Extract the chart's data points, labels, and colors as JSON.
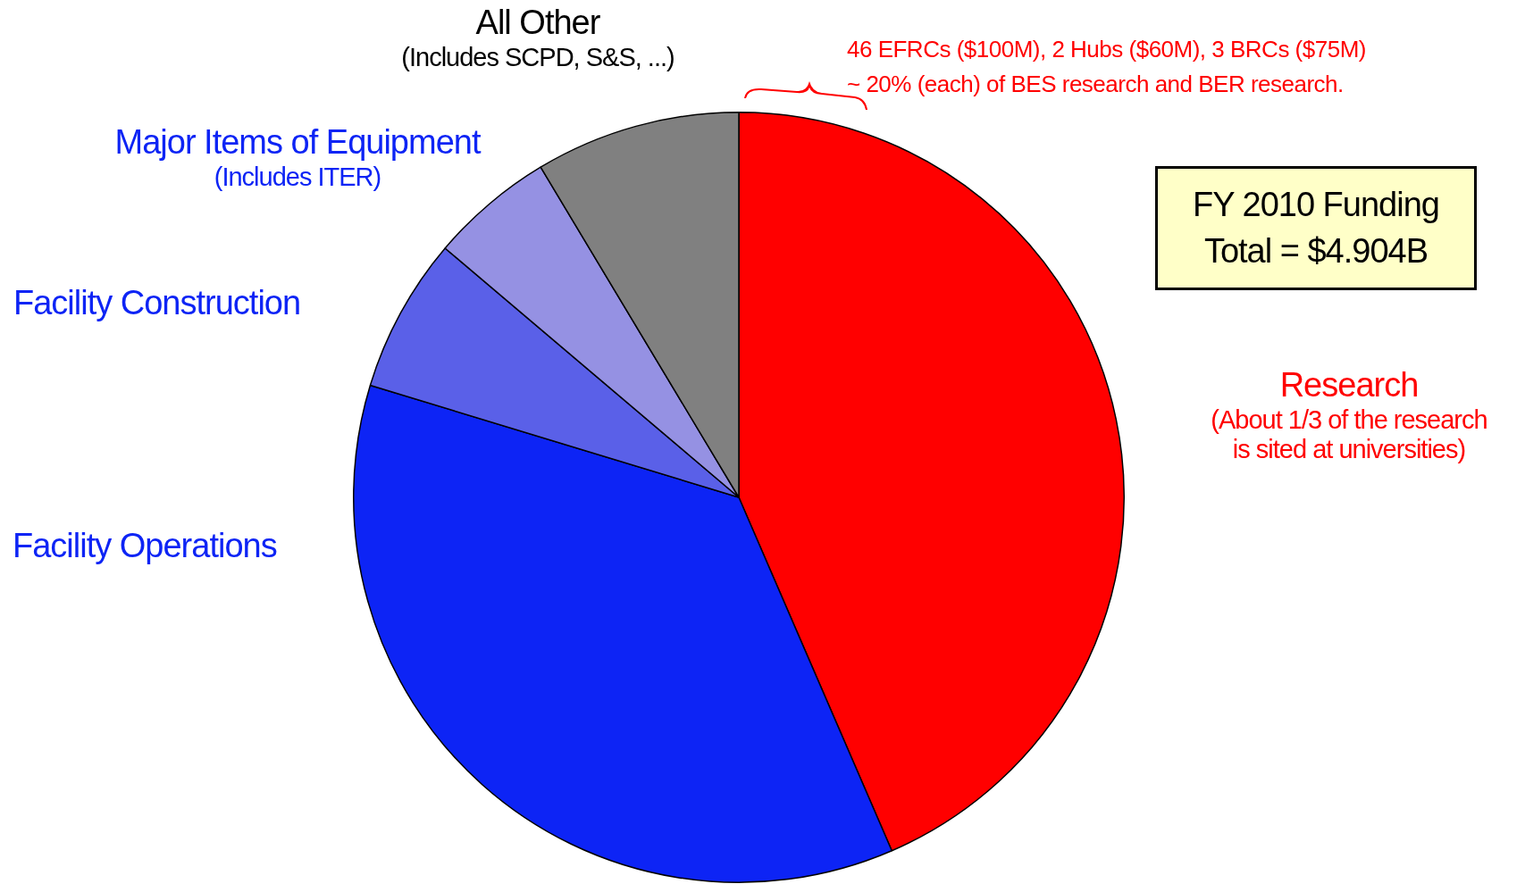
{
  "chart_data": {
    "type": "pie",
    "title": "FY 2010 Funding\nTotal = $4.904B",
    "categories": [
      "Research",
      "Facility Operations",
      "Facility Construction",
      "Major Items of Equipment",
      "All Other"
    ],
    "values": [
      43.5,
      36.2,
      6.5,
      5.2,
      8.6
    ],
    "colors": [
      "#ff0000",
      "#0d24f5",
      "#5a60e8",
      "#9591e3",
      "#808080"
    ],
    "legend": false,
    "annotations": [
      {
        "text": "(About 1/3 of the research\nis sited at universities)",
        "x": "Research"
      },
      {
        "text": "(Includes ITER)",
        "x": "Major Items of Equipment"
      },
      {
        "text": "(Includes SCPD, S&S, ...)",
        "x": "All Other"
      },
      "46 EFRCs ($100M), 2 Hubs ($60M), 3 BRCs ($75M)\n~ 20% (each) of BES research and BER research."
    ]
  }
}
